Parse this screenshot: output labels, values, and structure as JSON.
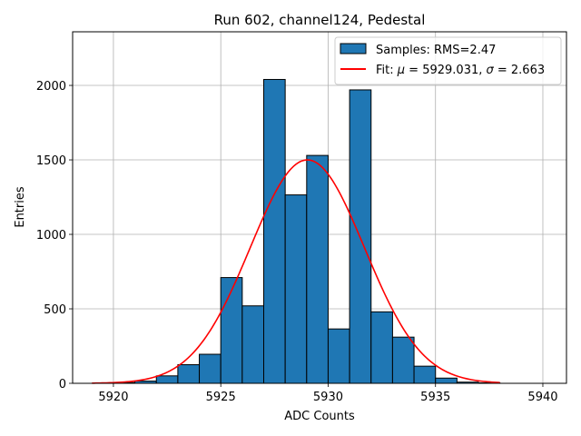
{
  "chart_data": {
    "type": "bar",
    "title": "Run 602, channel124, Pedestal",
    "xlabel": "ADC Counts",
    "ylabel": "Entries",
    "xlim": [
      5918.1,
      5941.1
    ],
    "ylim": [
      0,
      2360
    ],
    "xticks": [
      5920,
      5925,
      5930,
      5935,
      5940
    ],
    "yticks": [
      0,
      500,
      1000,
      1500,
      2000
    ],
    "grid": true,
    "legend_position": "upper-right",
    "colors": {
      "bar": "#1f77b4",
      "fit": "#ff0000"
    },
    "histogram": {
      "name": "Samples: RMS=2.47",
      "bin_width": 1,
      "bins": [
        {
          "left": 5920,
          "count": 5
        },
        {
          "left": 5921,
          "count": 15
        },
        {
          "left": 5922,
          "count": 50
        },
        {
          "left": 5923,
          "count": 125
        },
        {
          "left": 5924,
          "count": 195
        },
        {
          "left": 5925,
          "count": 710
        },
        {
          "left": 5926,
          "count": 520
        },
        {
          "left": 5927,
          "count": 2040
        },
        {
          "left": 5928,
          "count": 1265
        },
        {
          "left": 5929,
          "count": 1530
        },
        {
          "left": 5930,
          "count": 365
        },
        {
          "left": 5931,
          "count": 1970
        },
        {
          "left": 5932,
          "count": 480
        },
        {
          "left": 5933,
          "count": 310
        },
        {
          "left": 5934,
          "count": 115
        },
        {
          "left": 5935,
          "count": 35
        },
        {
          "left": 5936,
          "count": 8
        },
        {
          "left": 5937,
          "count": 3
        }
      ]
    },
    "fit": {
      "name_prefix": "Fit: ",
      "mu_symbol": "μ",
      "mu_text": " = 5929.031, ",
      "sigma_symbol": "σ",
      "sigma_text": " = 2.663",
      "type": "gaussian",
      "mu": 5929.031,
      "sigma": 2.663,
      "amplitude": 1500,
      "x_range": [
        5919,
        5938
      ]
    }
  }
}
